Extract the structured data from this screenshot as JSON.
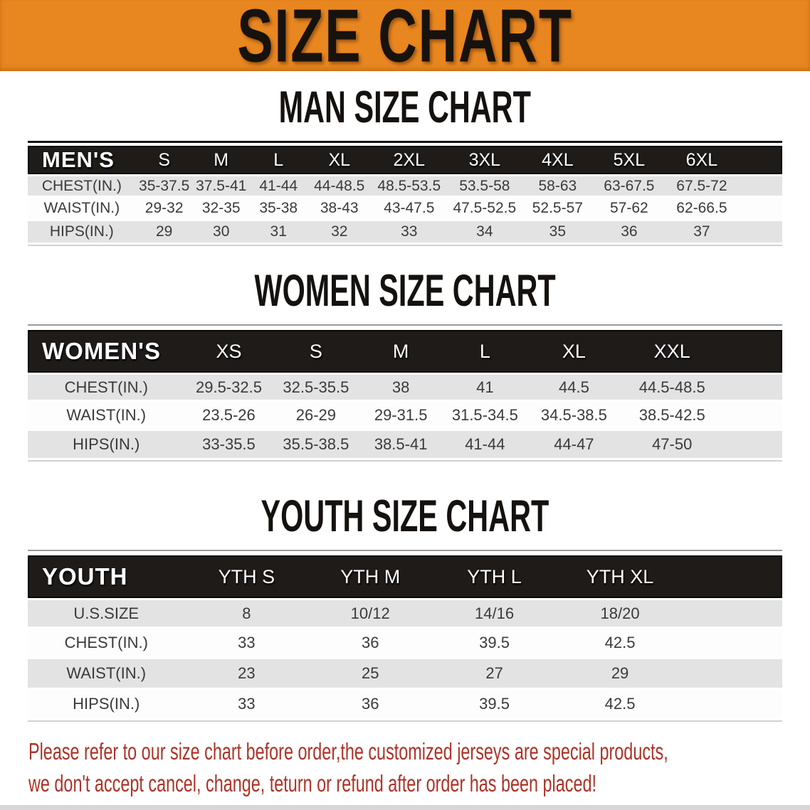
{
  "banner": {
    "title": "SIZE CHART"
  },
  "sections": [
    {
      "heading": "MAN SIZE CHART",
      "table": {
        "header_label": "MEN'S",
        "columns": [
          "S",
          "M",
          "L",
          "XL",
          "2XL",
          "3XL",
          "4XL",
          "5XL",
          "6XL"
        ],
        "rows": [
          {
            "label": "CHEST(IN.)",
            "values": [
              "35-37.5",
              "37.5-41",
              "41-44",
              "44-48.5",
              "48.5-53.5",
              "53.5-58",
              "58-63",
              "63-67.5",
              "67.5-72"
            ]
          },
          {
            "label": "WAIST(IN.)",
            "values": [
              "29-32",
              "32-35",
              "35-38",
              "38-43",
              "43-47.5",
              "47.5-52.5",
              "52.5-57",
              "57-62",
              "62-66.5"
            ]
          },
          {
            "label": "HIPS(IN.)",
            "values": [
              "29",
              "30",
              "31",
              "32",
              "33",
              "34",
              "35",
              "36",
              "37"
            ]
          }
        ]
      }
    },
    {
      "heading": "WOMEN SIZE CHART",
      "table": {
        "header_label": "WOMEN'S",
        "columns": [
          "XS",
          "S",
          "M",
          "L",
          "XL",
          "XXL"
        ],
        "rows": [
          {
            "label": "CHEST(IN.)",
            "values": [
              "29.5-32.5",
              "32.5-35.5",
              "38",
              "41",
              "44.5",
              "44.5-48.5"
            ]
          },
          {
            "label": "WAIST(IN.)",
            "values": [
              "23.5-26",
              "26-29",
              "29-31.5",
              "31.5-34.5",
              "34.5-38.5",
              "38.5-42.5"
            ]
          },
          {
            "label": "HIPS(IN.)",
            "values": [
              "33-35.5",
              "35.5-38.5",
              "38.5-41",
              "41-44",
              "44-47",
              "47-50"
            ]
          }
        ]
      }
    },
    {
      "heading": "YOUTH SIZE CHART",
      "table": {
        "header_label": "YOUTH",
        "columns": [
          "YTH S",
          "YTH M",
          "YTH L",
          "YTH XL"
        ],
        "rows": [
          {
            "label": "U.S.SIZE",
            "values": [
              "8",
              "10/12",
              "14/16",
              "18/20"
            ]
          },
          {
            "label": "CHEST(IN.)",
            "values": [
              "33",
              "36",
              "39.5",
              "42.5"
            ]
          },
          {
            "label": "WAIST(IN.)",
            "values": [
              "23",
              "25",
              "27",
              "29"
            ]
          },
          {
            "label": "HIPS(IN.)",
            "values": [
              "33",
              "36",
              "39.5",
              "42.5"
            ]
          }
        ]
      }
    }
  ],
  "footer": {
    "line1": "Please refer to our size chart before order,the customized jerseys are special products,",
    "line2": "we don't accept cancel, change, teturn or refund after order has been placed!"
  },
  "colors": {
    "banner_orange": "#E88620",
    "header_bar_black": "#1E1B19",
    "row_stripe_gray": "#E3E3E3",
    "notice_red": "#AC3328"
  }
}
